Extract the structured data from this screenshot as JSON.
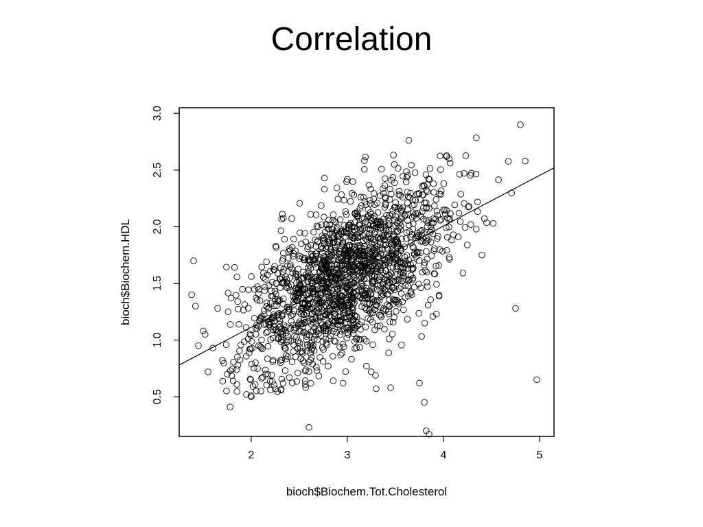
{
  "slide": {
    "title": "Correlation"
  },
  "chart_data": {
    "type": "scatter",
    "xlabel": "bioch$Biochem.Tot.Cholesterol",
    "ylabel": "bioch$Biochem.HDL",
    "xlim": [
      1.25,
      5.15
    ],
    "ylim": [
      0.15,
      3.05
    ],
    "x_ticks": [
      2,
      3,
      4,
      5
    ],
    "x_tick_labels": [
      "2",
      "3",
      "4",
      "5"
    ],
    "y_ticks": [
      0.5,
      1.0,
      1.5,
      2.0,
      2.5,
      3.0
    ],
    "y_tick_labels": [
      "0.5",
      "1.0",
      "1.5",
      "2.0",
      "2.5",
      "3.0"
    ],
    "grid": false,
    "legend": "none",
    "marker": "open-circle",
    "color": "#000000",
    "regression_line": {
      "x": [
        1.25,
        5.15
      ],
      "y": [
        0.78,
        2.52
      ]
    },
    "n_points": 1800,
    "x": [
      1.4,
      1.38,
      1.42,
      1.45,
      1.55,
      1.5,
      1.52,
      1.6,
      1.65,
      1.7,
      1.75,
      1.78,
      1.85,
      1.95,
      2.0,
      2.1,
      2.15,
      2.2,
      2.25,
      2.6,
      3.3,
      3.45,
      3.75,
      3.8,
      3.82,
      3.85,
      4.4,
      4.75,
      4.8,
      4.85,
      4.97,
      2.4,
      2.55,
      2.62,
      2.8
    ],
    "y": [
      1.7,
      1.4,
      1.3,
      0.95,
      0.72,
      1.08,
      1.05,
      0.93,
      1.28,
      0.82,
      0.7,
      0.41,
      0.74,
      0.52,
      0.5,
      0.55,
      0.7,
      0.56,
      0.57,
      0.23,
      0.57,
      0.58,
      0.62,
      0.45,
      0.2,
      0.17,
      1.75,
      1.28,
      2.9,
      2.58,
      0.65,
      1.55,
      0.8,
      0.62,
      0.77
    ]
  }
}
